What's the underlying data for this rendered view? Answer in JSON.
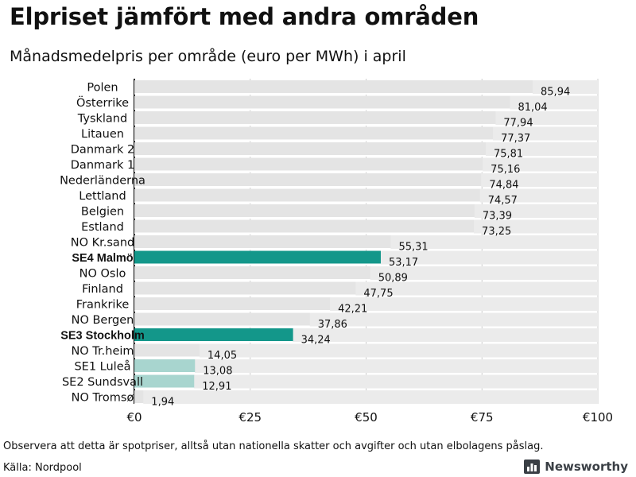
{
  "header": {
    "title": "Elpriset jämfört med andra områden",
    "subtitle": "Månadsmedelpris per område (euro per MWh) i april"
  },
  "footer": {
    "note": "Observera att detta är spotpriser, alltså utan nationella skatter och avgifter och utan elbolagens påslag.",
    "source": "Källa: Nordpool",
    "brand": "Newsworthy",
    "brand_icon": "bar-chart-logo-icon"
  },
  "colors": {
    "track": "#ebebeb",
    "default_bar": "#ebebeb",
    "highlight": "#13978a",
    "light_highlight": "#a8d5cf",
    "grid": "#cccccc",
    "axis": "#000000"
  },
  "chart_data": {
    "type": "bar",
    "orientation": "horizontal",
    "title": "Elpriset jämfört med andra områden",
    "subtitle": "Månadsmedelpris per område (euro per MWh) i april",
    "xlim": [
      0,
      100
    ],
    "x_ticks": [
      0,
      25,
      50,
      75,
      100
    ],
    "x_tick_labels": [
      "€0",
      "€25",
      "€50",
      "€75",
      "€100"
    ],
    "grid": true,
    "track_max": 100,
    "categories": [
      "Polen",
      "Österrike",
      "Tyskland",
      "Litauen",
      "Danmark 2",
      "Danmark 1",
      "Nederländerna",
      "Lettland",
      "Belgien",
      "Estland",
      "NO Kr.sand",
      "SE4 Malmö",
      "NO Oslo",
      "Finland",
      "Frankrike",
      "NO Bergen",
      "SE3 Stockholm",
      "NO Tr.heim",
      "SE1 Luleå",
      "SE2 Sundsvall",
      "NO Tromsø"
    ],
    "values": [
      85.94,
      81.04,
      77.94,
      77.37,
      75.81,
      75.16,
      74.84,
      74.57,
      73.39,
      73.25,
      55.31,
      53.17,
      50.89,
      47.75,
      42.21,
      37.86,
      34.24,
      14.05,
      13.08,
      12.91,
      1.94
    ],
    "value_labels": [
      "85,94",
      "81,04",
      "77,94",
      "77,37",
      "75,81",
      "75,16",
      "74,84",
      "74,57",
      "73,39",
      "73,25",
      "55,31",
      "53,17",
      "50,89",
      "47,75",
      "42,21",
      "37,86",
      "34,24",
      "14,05",
      "13,08",
      "12,91",
      "1,94"
    ],
    "highlight": [
      "default",
      "default",
      "default",
      "default",
      "default",
      "default",
      "default",
      "default",
      "default",
      "default",
      "default",
      "strong",
      "default",
      "default",
      "default",
      "default",
      "strong",
      "default",
      "light",
      "light",
      "default"
    ],
    "bold_labels": [
      false,
      false,
      false,
      false,
      false,
      false,
      false,
      false,
      false,
      false,
      false,
      true,
      false,
      false,
      false,
      false,
      true,
      false,
      false,
      false,
      false
    ]
  }
}
